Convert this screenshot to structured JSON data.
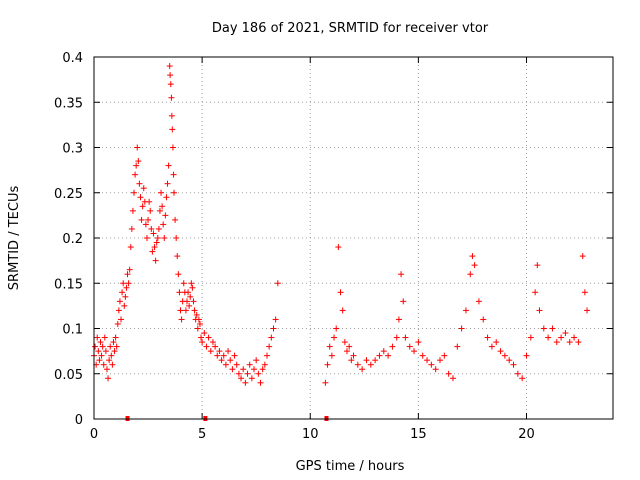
{
  "chart_data": {
    "type": "scatter",
    "title": "Day 186 of 2021, SRMTID for receiver vtor",
    "xlabel": "GPS time / hours",
    "ylabel": "SRMTID / TECUs",
    "xlim": [
      0,
      24
    ],
    "ylim": [
      0,
      0.4
    ],
    "x_ticks": [
      0,
      5,
      10,
      15,
      20
    ],
    "x_tick_labels": [
      "0",
      "5",
      "10",
      "15",
      "20"
    ],
    "y_ticks": [
      0,
      0.05,
      0.1,
      0.15,
      0.2,
      0.25,
      0.3,
      0.35,
      0.4
    ],
    "y_tick_labels": [
      "0",
      "0.05",
      "0.1",
      "0.15",
      "0.2",
      "0.25",
      "0.3",
      "0.35",
      "0.4"
    ],
    "grid": true,
    "marker": "+",
    "color": "#ff0000",
    "series": [
      {
        "name": "SRMTID",
        "points": [
          [
            0.0,
            0.07
          ],
          [
            0.05,
            0.08
          ],
          [
            0.1,
            0.06
          ],
          [
            0.15,
            0.09
          ],
          [
            0.2,
            0.075
          ],
          [
            0.25,
            0.065
          ],
          [
            0.3,
            0.085
          ],
          [
            0.35,
            0.07
          ],
          [
            0.4,
            0.08
          ],
          [
            0.45,
            0.06
          ],
          [
            0.5,
            0.09
          ],
          [
            0.55,
            0.075
          ],
          [
            0.6,
            0.055
          ],
          [
            0.65,
            0.045
          ],
          [
            0.7,
            0.065
          ],
          [
            0.75,
            0.08
          ],
          [
            0.8,
            0.07
          ],
          [
            0.85,
            0.06
          ],
          [
            0.9,
            0.085
          ],
          [
            0.95,
            0.075
          ],
          [
            1.0,
            0.09
          ],
          [
            1.05,
            0.08
          ],
          [
            1.1,
            0.105
          ],
          [
            1.15,
            0.12
          ],
          [
            1.2,
            0.13
          ],
          [
            1.25,
            0.11
          ],
          [
            1.3,
            0.14
          ],
          [
            1.35,
            0.15
          ],
          [
            1.4,
            0.125
          ],
          [
            1.45,
            0.135
          ],
          [
            1.5,
            0.145
          ],
          [
            1.55,
            0.16
          ],
          [
            1.6,
            0.15
          ],
          [
            1.65,
            0.165
          ],
          [
            1.7,
            0.19
          ],
          [
            1.75,
            0.21
          ],
          [
            1.8,
            0.23
          ],
          [
            1.85,
            0.25
          ],
          [
            1.9,
            0.27
          ],
          [
            1.95,
            0.28
          ],
          [
            2.0,
            0.3
          ],
          [
            2.05,
            0.285
          ],
          [
            2.1,
            0.26
          ],
          [
            2.15,
            0.245
          ],
          [
            2.2,
            0.22
          ],
          [
            2.25,
            0.235
          ],
          [
            2.3,
            0.255
          ],
          [
            2.35,
            0.24
          ],
          [
            2.4,
            0.215
          ],
          [
            2.45,
            0.2
          ],
          [
            2.5,
            0.22
          ],
          [
            2.55,
            0.24
          ],
          [
            2.6,
            0.23
          ],
          [
            2.65,
            0.21
          ],
          [
            2.7,
            0.185
          ],
          [
            2.75,
            0.205
          ],
          [
            2.8,
            0.19
          ],
          [
            2.85,
            0.175
          ],
          [
            2.9,
            0.195
          ],
          [
            2.95,
            0.2
          ],
          [
            3.0,
            0.21
          ],
          [
            3.05,
            0.23
          ],
          [
            3.1,
            0.25
          ],
          [
            3.15,
            0.235
          ],
          [
            3.2,
            0.215
          ],
          [
            3.25,
            0.2
          ],
          [
            3.3,
            0.225
          ],
          [
            3.35,
            0.245
          ],
          [
            3.4,
            0.26
          ],
          [
            3.45,
            0.28
          ],
          [
            3.5,
            0.39
          ],
          [
            3.52,
            0.38
          ],
          [
            3.55,
            0.37
          ],
          [
            3.58,
            0.355
          ],
          [
            3.6,
            0.335
          ],
          [
            3.62,
            0.32
          ],
          [
            3.65,
            0.3
          ],
          [
            3.68,
            0.27
          ],
          [
            3.7,
            0.25
          ],
          [
            3.75,
            0.22
          ],
          [
            3.8,
            0.2
          ],
          [
            3.85,
            0.18
          ],
          [
            3.9,
            0.16
          ],
          [
            3.95,
            0.14
          ],
          [
            4.0,
            0.12
          ],
          [
            4.05,
            0.11
          ],
          [
            4.1,
            0.13
          ],
          [
            4.15,
            0.15
          ],
          [
            4.2,
            0.14
          ],
          [
            4.25,
            0.12
          ],
          [
            4.3,
            0.13
          ],
          [
            4.35,
            0.14
          ],
          [
            4.4,
            0.125
          ],
          [
            4.45,
            0.135
          ],
          [
            4.5,
            0.15
          ],
          [
            4.55,
            0.145
          ],
          [
            4.6,
            0.13
          ],
          [
            4.65,
            0.12
          ],
          [
            4.7,
            0.11
          ],
          [
            4.75,
            0.115
          ],
          [
            4.8,
            0.1
          ],
          [
            4.85,
            0.11
          ],
          [
            4.9,
            0.105
          ],
          [
            4.95,
            0.09
          ],
          [
            5.0,
            0.085
          ],
          [
            5.1,
            0.095
          ],
          [
            5.2,
            0.08
          ],
          [
            5.3,
            0.09
          ],
          [
            5.4,
            0.075
          ],
          [
            5.5,
            0.085
          ],
          [
            5.6,
            0.08
          ],
          [
            5.7,
            0.07
          ],
          [
            5.8,
            0.075
          ],
          [
            5.9,
            0.065
          ],
          [
            6.0,
            0.07
          ],
          [
            6.1,
            0.06
          ],
          [
            6.2,
            0.075
          ],
          [
            6.3,
            0.065
          ],
          [
            6.4,
            0.055
          ],
          [
            6.5,
            0.07
          ],
          [
            6.6,
            0.06
          ],
          [
            6.7,
            0.05
          ],
          [
            6.8,
            0.045
          ],
          [
            6.9,
            0.055
          ],
          [
            7.0,
            0.04
          ],
          [
            7.1,
            0.05
          ],
          [
            7.2,
            0.06
          ],
          [
            7.3,
            0.045
          ],
          [
            7.4,
            0.055
          ],
          [
            7.5,
            0.065
          ],
          [
            7.6,
            0.05
          ],
          [
            7.7,
            0.04
          ],
          [
            7.8,
            0.055
          ],
          [
            7.9,
            0.06
          ],
          [
            8.0,
            0.07
          ],
          [
            8.1,
            0.08
          ],
          [
            8.2,
            0.09
          ],
          [
            8.3,
            0.1
          ],
          [
            8.4,
            0.11
          ],
          [
            8.5,
            0.15
          ],
          [
            10.7,
            0.04
          ],
          [
            10.8,
            0.06
          ],
          [
            10.9,
            0.08
          ],
          [
            11.0,
            0.07
          ],
          [
            11.1,
            0.09
          ],
          [
            11.2,
            0.1
          ],
          [
            11.3,
            0.19
          ],
          [
            11.4,
            0.14
          ],
          [
            11.5,
            0.12
          ],
          [
            11.6,
            0.085
          ],
          [
            11.7,
            0.075
          ],
          [
            11.8,
            0.08
          ],
          [
            11.9,
            0.065
          ],
          [
            12.0,
            0.07
          ],
          [
            12.2,
            0.06
          ],
          [
            12.4,
            0.055
          ],
          [
            12.6,
            0.065
          ],
          [
            12.8,
            0.06
          ],
          [
            13.0,
            0.065
          ],
          [
            13.2,
            0.07
          ],
          [
            13.4,
            0.075
          ],
          [
            13.6,
            0.07
          ],
          [
            13.8,
            0.08
          ],
          [
            14.0,
            0.09
          ],
          [
            14.1,
            0.11
          ],
          [
            14.2,
            0.16
          ],
          [
            14.3,
            0.13
          ],
          [
            14.4,
            0.09
          ],
          [
            14.6,
            0.08
          ],
          [
            14.8,
            0.075
          ],
          [
            15.0,
            0.085
          ],
          [
            15.2,
            0.07
          ],
          [
            15.4,
            0.065
          ],
          [
            15.6,
            0.06
          ],
          [
            15.8,
            0.055
          ],
          [
            16.0,
            0.065
          ],
          [
            16.2,
            0.07
          ],
          [
            16.4,
            0.05
          ],
          [
            16.6,
            0.045
          ],
          [
            16.8,
            0.08
          ],
          [
            17.0,
            0.1
          ],
          [
            17.2,
            0.12
          ],
          [
            17.4,
            0.16
          ],
          [
            17.5,
            0.18
          ],
          [
            17.6,
            0.17
          ],
          [
            17.8,
            0.13
          ],
          [
            18.0,
            0.11
          ],
          [
            18.2,
            0.09
          ],
          [
            18.4,
            0.08
          ],
          [
            18.6,
            0.085
          ],
          [
            18.8,
            0.075
          ],
          [
            19.0,
            0.07
          ],
          [
            19.2,
            0.065
          ],
          [
            19.4,
            0.06
          ],
          [
            19.6,
            0.05
          ],
          [
            19.8,
            0.045
          ],
          [
            20.0,
            0.07
          ],
          [
            20.2,
            0.09
          ],
          [
            20.4,
            0.14
          ],
          [
            20.5,
            0.17
          ],
          [
            20.6,
            0.12
          ],
          [
            20.8,
            0.1
          ],
          [
            21.0,
            0.09
          ],
          [
            21.2,
            0.1
          ],
          [
            21.4,
            0.085
          ],
          [
            21.6,
            0.09
          ],
          [
            21.8,
            0.095
          ],
          [
            22.0,
            0.085
          ],
          [
            22.2,
            0.09
          ],
          [
            22.4,
            0.085
          ],
          [
            22.6,
            0.18
          ],
          [
            22.7,
            0.14
          ],
          [
            22.8,
            0.12
          ]
        ]
      }
    ],
    "axis_markers_x": [
      1.55,
      5.15,
      10.75
    ]
  }
}
